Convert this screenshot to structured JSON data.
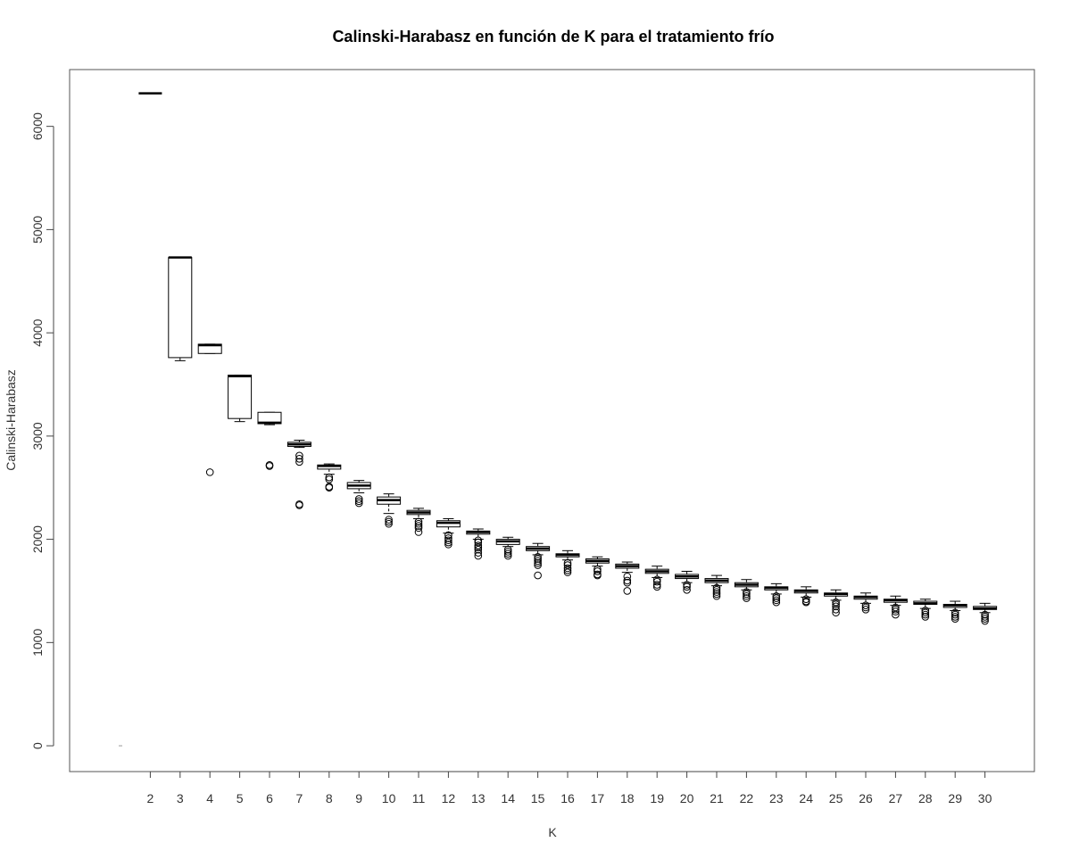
{
  "chart_data": {
    "type": "box",
    "title": "Calinski-Harabasz en función de K para el tratamiento frío",
    "xlabel": "K",
    "ylabel": "Calinski-Harabasz",
    "x_ticks": [
      "2",
      "3",
      "4",
      "5",
      "6",
      "7",
      "8",
      "9",
      "10",
      "11",
      "12",
      "13",
      "14",
      "15",
      "16",
      "17",
      "18",
      "19",
      "20",
      "21",
      "22",
      "23",
      "24",
      "25",
      "26",
      "27",
      "28",
      "29",
      "30"
    ],
    "y_ticks": [
      0,
      1000,
      2000,
      3000,
      4000,
      5000,
      6000
    ],
    "ylim": [
      -250,
      6550
    ],
    "grid": false,
    "boxes": [
      {
        "k": "1",
        "min": 0,
        "q1": 0,
        "median": 0,
        "q3": 0,
        "max": 0,
        "outliers": []
      },
      {
        "k": "2",
        "min": 6320,
        "q1": 6320,
        "median": 6320,
        "q3": 6320,
        "max": 6320,
        "outliers": []
      },
      {
        "k": "3",
        "min": 3730,
        "q1": 3760,
        "median": 4730,
        "q3": 4730,
        "max": 4730,
        "outliers": []
      },
      {
        "k": "4",
        "min": 3800,
        "q1": 3800,
        "median": 3880,
        "q3": 3890,
        "max": 3890,
        "outliers": [
          2650
        ]
      },
      {
        "k": "5",
        "min": 3140,
        "q1": 3170,
        "median": 3580,
        "q3": 3590,
        "max": 3590,
        "outliers": []
      },
      {
        "k": "6",
        "min": 3110,
        "q1": 3120,
        "median": 3130,
        "q3": 3230,
        "max": 3230,
        "outliers": [
          2710,
          2720
        ]
      },
      {
        "k": "7",
        "min": 2890,
        "q1": 2900,
        "median": 2920,
        "q3": 2940,
        "max": 2960,
        "outliers": [
          2750,
          2780,
          2810,
          2340,
          2330
        ]
      },
      {
        "k": "8",
        "min": 2630,
        "q1": 2680,
        "median": 2710,
        "q3": 2720,
        "max": 2730,
        "outliers": [
          2600,
          2580,
          2510,
          2500
        ]
      },
      {
        "k": "9",
        "min": 2450,
        "q1": 2490,
        "median": 2520,
        "q3": 2550,
        "max": 2570,
        "outliers": [
          2390,
          2370,
          2350
        ]
      },
      {
        "k": "10",
        "min": 2250,
        "q1": 2340,
        "median": 2380,
        "q3": 2410,
        "max": 2440,
        "outliers": [
          2190,
          2170,
          2150
        ]
      },
      {
        "k": "11",
        "min": 2200,
        "q1": 2240,
        "median": 2260,
        "q3": 2280,
        "max": 2300,
        "outliers": [
          2170,
          2150,
          2130,
          2110,
          2070
        ]
      },
      {
        "k": "12",
        "min": 2060,
        "q1": 2120,
        "median": 2160,
        "q3": 2180,
        "max": 2200,
        "outliers": [
          2040,
          2010,
          1990,
          1970,
          1950
        ]
      },
      {
        "k": "13",
        "min": 2000,
        "q1": 2050,
        "median": 2070,
        "q3": 2080,
        "max": 2100,
        "outliers": [
          1990,
          1970,
          1940,
          1920,
          1900,
          1870,
          1840
        ]
      },
      {
        "k": "14",
        "min": 1930,
        "q1": 1950,
        "median": 1980,
        "q3": 2000,
        "max": 2020,
        "outliers": [
          1900,
          1880,
          1860,
          1840
        ]
      },
      {
        "k": "15",
        "min": 1850,
        "q1": 1890,
        "median": 1910,
        "q3": 1930,
        "max": 1960,
        "outliers": [
          1830,
          1810,
          1790,
          1770,
          1750,
          1650
        ]
      },
      {
        "k": "16",
        "min": 1800,
        "q1": 1830,
        "median": 1850,
        "q3": 1860,
        "max": 1890,
        "outliers": [
          1770,
          1750,
          1720,
          1700,
          1680
        ]
      },
      {
        "k": "17",
        "min": 1740,
        "q1": 1770,
        "median": 1790,
        "q3": 1810,
        "max": 1830,
        "outliers": [
          1710,
          1690,
          1660,
          1650
        ]
      },
      {
        "k": "18",
        "min": 1680,
        "q1": 1720,
        "median": 1740,
        "q3": 1760,
        "max": 1780,
        "outliers": [
          1640,
          1600,
          1580,
          1500
        ]
      },
      {
        "k": "19",
        "min": 1630,
        "q1": 1670,
        "median": 1690,
        "q3": 1710,
        "max": 1740,
        "outliers": [
          1610,
          1590,
          1560,
          1540
        ]
      },
      {
        "k": "20",
        "min": 1580,
        "q1": 1620,
        "median": 1640,
        "q3": 1660,
        "max": 1690,
        "outliers": [
          1560,
          1540,
          1510
        ]
      },
      {
        "k": "21",
        "min": 1550,
        "q1": 1580,
        "median": 1600,
        "q3": 1620,
        "max": 1650,
        "outliers": [
          1530,
          1510,
          1490,
          1470,
          1450
        ]
      },
      {
        "k": "22",
        "min": 1510,
        "q1": 1540,
        "median": 1560,
        "q3": 1580,
        "max": 1610,
        "outliers": [
          1490,
          1470,
          1450,
          1430
        ]
      },
      {
        "k": "23",
        "min": 1470,
        "q1": 1510,
        "median": 1530,
        "q3": 1540,
        "max": 1570,
        "outliers": [
          1450,
          1430,
          1410,
          1390
        ]
      },
      {
        "k": "24",
        "min": 1440,
        "q1": 1480,
        "median": 1500,
        "q3": 1510,
        "max": 1540,
        "outliers": [
          1420,
          1400,
          1390
        ]
      },
      {
        "k": "25",
        "min": 1410,
        "q1": 1450,
        "median": 1470,
        "q3": 1480,
        "max": 1510,
        "outliers": [
          1390,
          1370,
          1350,
          1320,
          1290
        ]
      },
      {
        "k": "26",
        "min": 1380,
        "q1": 1420,
        "median": 1440,
        "q3": 1450,
        "max": 1480,
        "outliers": [
          1360,
          1340,
          1320
        ]
      },
      {
        "k": "27",
        "min": 1360,
        "q1": 1390,
        "median": 1410,
        "q3": 1420,
        "max": 1450,
        "outliers": [
          1340,
          1320,
          1300,
          1270
        ]
      },
      {
        "k": "28",
        "min": 1330,
        "q1": 1370,
        "median": 1380,
        "q3": 1400,
        "max": 1420,
        "outliers": [
          1310,
          1290,
          1270,
          1250
        ]
      },
      {
        "k": "29",
        "min": 1310,
        "q1": 1340,
        "median": 1360,
        "q3": 1370,
        "max": 1400,
        "outliers": [
          1290,
          1270,
          1250,
          1230
        ]
      },
      {
        "k": "30",
        "min": 1290,
        "q1": 1320,
        "median": 1330,
        "q3": 1350,
        "max": 1380,
        "outliers": [
          1270,
          1250,
          1230,
          1210
        ]
      }
    ]
  }
}
